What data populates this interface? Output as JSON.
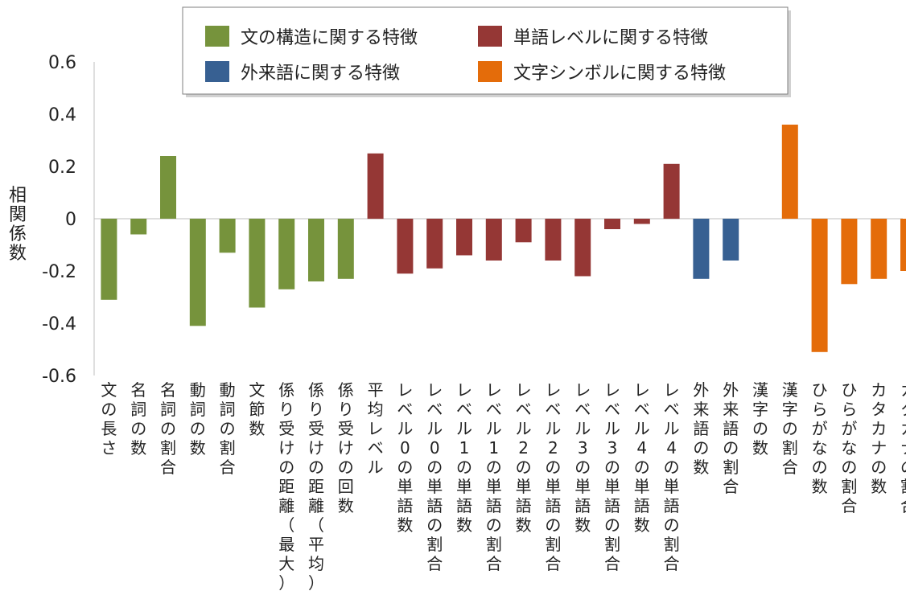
{
  "chart_data": {
    "type": "bar",
    "ylabel": "相関係数",
    "ylim": [
      -0.6,
      0.6
    ],
    "yticks": [
      "0.6",
      "0.4",
      "0.2",
      "0",
      "-0.2",
      "-0.4",
      "-0.6"
    ],
    "grid": false,
    "legend_position": "top",
    "groups": [
      {
        "name": "文の構造に関する特徴",
        "color": "#76933c"
      },
      {
        "name": "単語レベルに関する特徴",
        "color": "#953735"
      },
      {
        "name": "外来語に関する特徴",
        "color": "#376092"
      },
      {
        "name": "文字シンボルに関する特徴",
        "color": "#e46c0a"
      }
    ],
    "categories": [
      "文の長さ",
      "名詞の数",
      "名詞の割合",
      "動詞の数",
      "動詞の割合",
      "文節数",
      "係り受けの距離（最大）",
      "係り受けの距離（平均）",
      "係り受けの回数",
      "平均レベル",
      "レベル0の単語数",
      "レベル0の単語の割合",
      "レベル1の単語数",
      "レベル1の単語の割合",
      "レベル2の単語数",
      "レベル2の単語の割合",
      "レベル3の単語数",
      "レベル3の単語の割合",
      "レベル4の単語数",
      "レベル4の単語の割合",
      "外来語の数",
      "外来語の割合",
      "漢字の数",
      "漢字の割合",
      "ひらがなの数",
      "ひらがなの割合",
      "カタカナの数",
      "カタカナの割合"
    ],
    "values": [
      -0.31,
      -0.06,
      0.24,
      -0.41,
      -0.13,
      -0.34,
      -0.27,
      -0.24,
      -0.23,
      0.25,
      -0.21,
      -0.19,
      -0.14,
      -0.16,
      -0.09,
      -0.16,
      -0.22,
      -0.04,
      -0.02,
      0.21,
      -0.23,
      -0.16,
      0.0,
      0.36,
      -0.51,
      -0.25,
      -0.23,
      -0.2
    ],
    "category_group": [
      0,
      0,
      0,
      0,
      0,
      0,
      0,
      0,
      0,
      1,
      1,
      1,
      1,
      1,
      1,
      1,
      1,
      1,
      1,
      1,
      2,
      2,
      3,
      3,
      3,
      3,
      3,
      3
    ]
  }
}
